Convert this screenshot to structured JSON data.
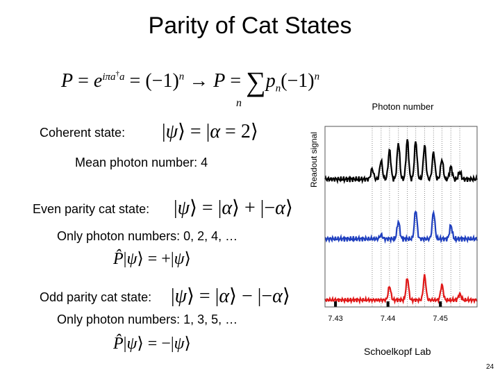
{
  "slide": {
    "title": "Parity of Cat States",
    "page_number": "24",
    "credit": "Schoelkopf Lab"
  },
  "equations": {
    "parity": "P = e^{iπa†a} = (−1)^n → P = Σ_n p_n (−1)^n",
    "coherent": "|ψ⟩ = |α = 2⟩",
    "even_cat": "|ψ⟩ = |α⟩ + |−α⟩",
    "even_parity": "P̂|ψ⟩ = +|ψ⟩",
    "odd_cat": "|ψ⟩ = |α⟩ − |−α⟩",
    "odd_parity": "P̂|ψ⟩ = −|ψ⟩"
  },
  "labels": {
    "coherent": "Coherent state:",
    "mean_photon": "Mean photon number: 4",
    "even_cat": "Even parity cat state:",
    "even_numbers": "Only photon numbers: 0, 2, 4, …",
    "odd_cat": "Odd parity cat state:",
    "odd_numbers": "Only photon numbers: 1, 3, 5, …"
  },
  "chart_data": {
    "type": "line",
    "title": "Photon number",
    "xlabel": "",
    "ylabel": "Readout signal",
    "xlim": [
      7.428,
      7.457
    ],
    "x_ticks": [
      7.43,
      7.44,
      7.45
    ],
    "x_tick_labels": [
      "7.43",
      "7.44",
      "7.45"
    ],
    "grid": "vertical dotted lines at photon-number peaks",
    "series": [
      {
        "color": "#000000",
        "peaks": [
          [
            7.437,
            0.25
          ],
          [
            7.4387,
            0.45
          ],
          [
            7.4403,
            0.7
          ],
          [
            7.442,
            0.88
          ],
          [
            7.4437,
            0.95
          ],
          [
            7.4453,
            0.92
          ],
          [
            7.447,
            0.82
          ],
          [
            7.4487,
            0.65
          ],
          [
            7.4503,
            0.48
          ],
          [
            7.452,
            0.3
          ],
          [
            7.4537,
            0.18
          ]
        ]
      },
      {
        "color": "#1f3fbf",
        "peaks": [
          [
            7.4387,
            0.1
          ],
          [
            7.442,
            0.45
          ],
          [
            7.4453,
            0.75
          ],
          [
            7.4487,
            0.7
          ],
          [
            7.452,
            0.35
          ]
        ]
      },
      {
        "color": "#e01818",
        "peaks": [
          [
            7.4403,
            0.45
          ],
          [
            7.4437,
            0.72
          ],
          [
            7.447,
            0.8
          ],
          [
            7.4503,
            0.5
          ],
          [
            7.4537,
            0.2
          ]
        ]
      }
    ]
  }
}
